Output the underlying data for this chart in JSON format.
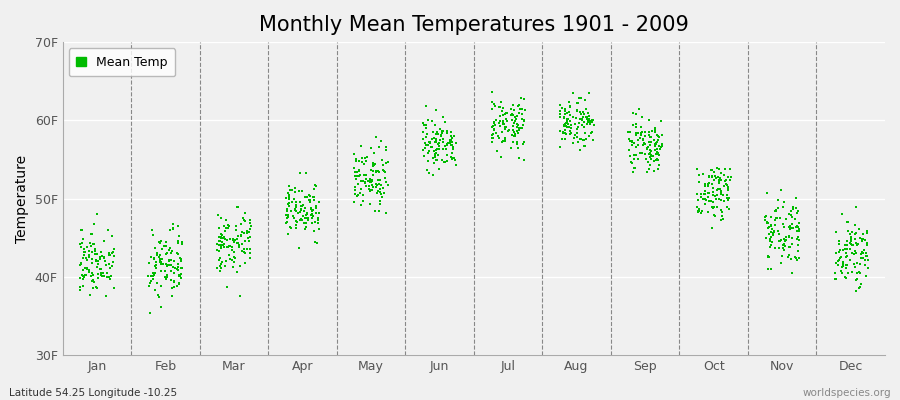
{
  "title": "Monthly Mean Temperatures 1901 - 2009",
  "ylabel": "Temperature",
  "dot_color": "#00BB00",
  "bg_color": "#f0f0f0",
  "ylim": [
    30,
    70
  ],
  "yticks": [
    30,
    40,
    50,
    60,
    70
  ],
  "ytick_labels": [
    "30F",
    "40F",
    "50F",
    "60F",
    "70F"
  ],
  "month_labels": [
    "Jan",
    "Feb",
    "Mar",
    "Apr",
    "May",
    "Jun",
    "Jul",
    "Aug",
    "Sep",
    "Oct",
    "Nov",
    "Dec"
  ],
  "legend_label": "Mean Temp",
  "footnote_left": "Latitude 54.25 Longitude -10.25",
  "footnote_right": "worldspecies.org",
  "title_fontsize": 15,
  "axis_fontsize": 10,
  "tick_fontsize": 9,
  "dot_size": 3,
  "monthly_means_F": [
    42.0,
    41.5,
    44.5,
    48.5,
    52.5,
    57.0,
    59.5,
    59.5,
    56.5,
    51.0,
    46.0,
    43.0
  ],
  "monthly_stds_F": [
    2.2,
    2.4,
    2.0,
    1.8,
    1.8,
    1.8,
    1.6,
    1.7,
    1.8,
    1.8,
    2.0,
    2.0
  ],
  "n_years": 109
}
